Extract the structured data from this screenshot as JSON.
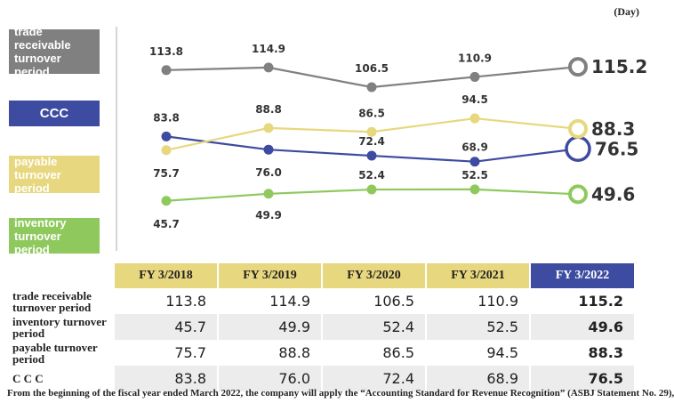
{
  "unit_label": "(Day)",
  "footnote": "From the beginning of the fiscal year ended March 2022, the company will apply the “Accounting Standard for Revenue Recognition” (ASBJ Statement No. 29),",
  "colors": {
    "trade_receivable": "#808080",
    "ccc": "#3d4ba0",
    "payable": "#e7d77e",
    "inventory": "#8fc95e"
  },
  "chart_data": {
    "type": "line",
    "categories": [
      "FY 3/2018",
      "FY 3/2019",
      "FY 3/2020",
      "FY 3/2021",
      "FY 3/2022"
    ],
    "series": [
      {
        "name": "trade receivable turnover period",
        "values": [
          113.8,
          114.9,
          106.5,
          110.9,
          115.2
        ]
      },
      {
        "name": "CCC",
        "values": [
          83.8,
          76.0,
          72.4,
          68.9,
          76.5
        ]
      },
      {
        "name": "payable turnover period",
        "values": [
          75.7,
          88.8,
          86.5,
          94.5,
          88.3
        ]
      },
      {
        "name": "inventory turnover period",
        "values": [
          45.7,
          49.9,
          52.4,
          52.5,
          49.6
        ]
      }
    ]
  },
  "table": {
    "headers": [
      "FY 3/2018",
      "FY 3/2019",
      "FY 3/2020",
      "FY 3/2021",
      "FY 3/2022"
    ],
    "rows": [
      {
        "label": "trade receivable turnover period",
        "values": [
          "113.8",
          "114.9",
          "106.5",
          "110.9",
          "115.2"
        ]
      },
      {
        "label": "inventory turnover period",
        "values": [
          "45.7",
          "49.9",
          "52.4",
          "52.5",
          "49.6"
        ]
      },
      {
        "label": "payable turnover period",
        "values": [
          "75.7",
          "88.8",
          "86.5",
          "94.5",
          "88.3"
        ]
      },
      {
        "label": "C C C",
        "values": [
          "83.8",
          "76.0",
          "72.4",
          "68.9",
          "76.5"
        ]
      }
    ]
  }
}
